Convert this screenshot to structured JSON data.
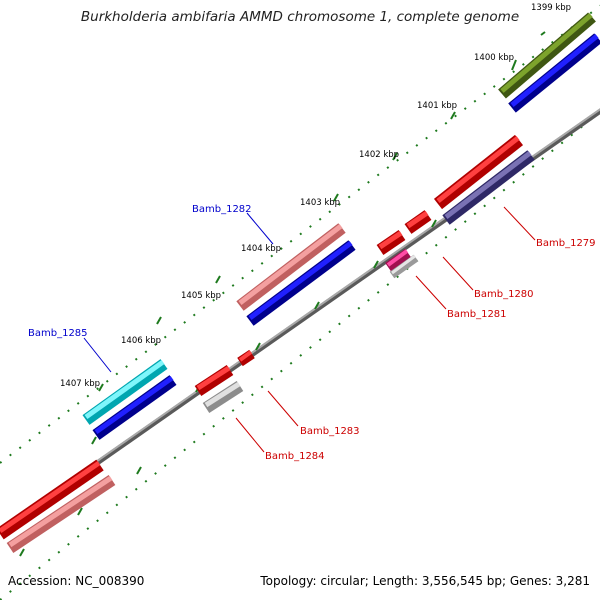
{
  "title": "Burkholderia ambifaria AMMD chromosome 1, complete genome",
  "footer": {
    "accession": "Accession: NC_008390",
    "summary": "Topology: circular; Length: 3,556,545 bp; Genes: 3,281"
  },
  "ticks": [
    "1399 kbp",
    "1400 kbp",
    "1401 kbp",
    "1402 kbp",
    "1403 kbp",
    "1404 kbp",
    "1405 kbp",
    "1406 kbp",
    "1407 kbp"
  ],
  "gene_labels": [
    "Bamb_1279",
    "Bamb_1280",
    "Bamb_1281",
    "Bamb_1282",
    "Bamb_1283",
    "Bamb_1284",
    "Bamb_1285"
  ],
  "colors": {
    "axis": "#8c8c8c",
    "tick": "#1e7a1e",
    "forward_label": "#0000cc",
    "reverse_label": "#cc0000",
    "olive": "#6b8e23",
    "blue": "#0000dd",
    "red": "#ee0000",
    "navy": "#48407e",
    "salmon": "#ee8080",
    "magenta": "#e6177a",
    "gray": "#c0c0c0",
    "cyan": "#00e5ee"
  }
}
